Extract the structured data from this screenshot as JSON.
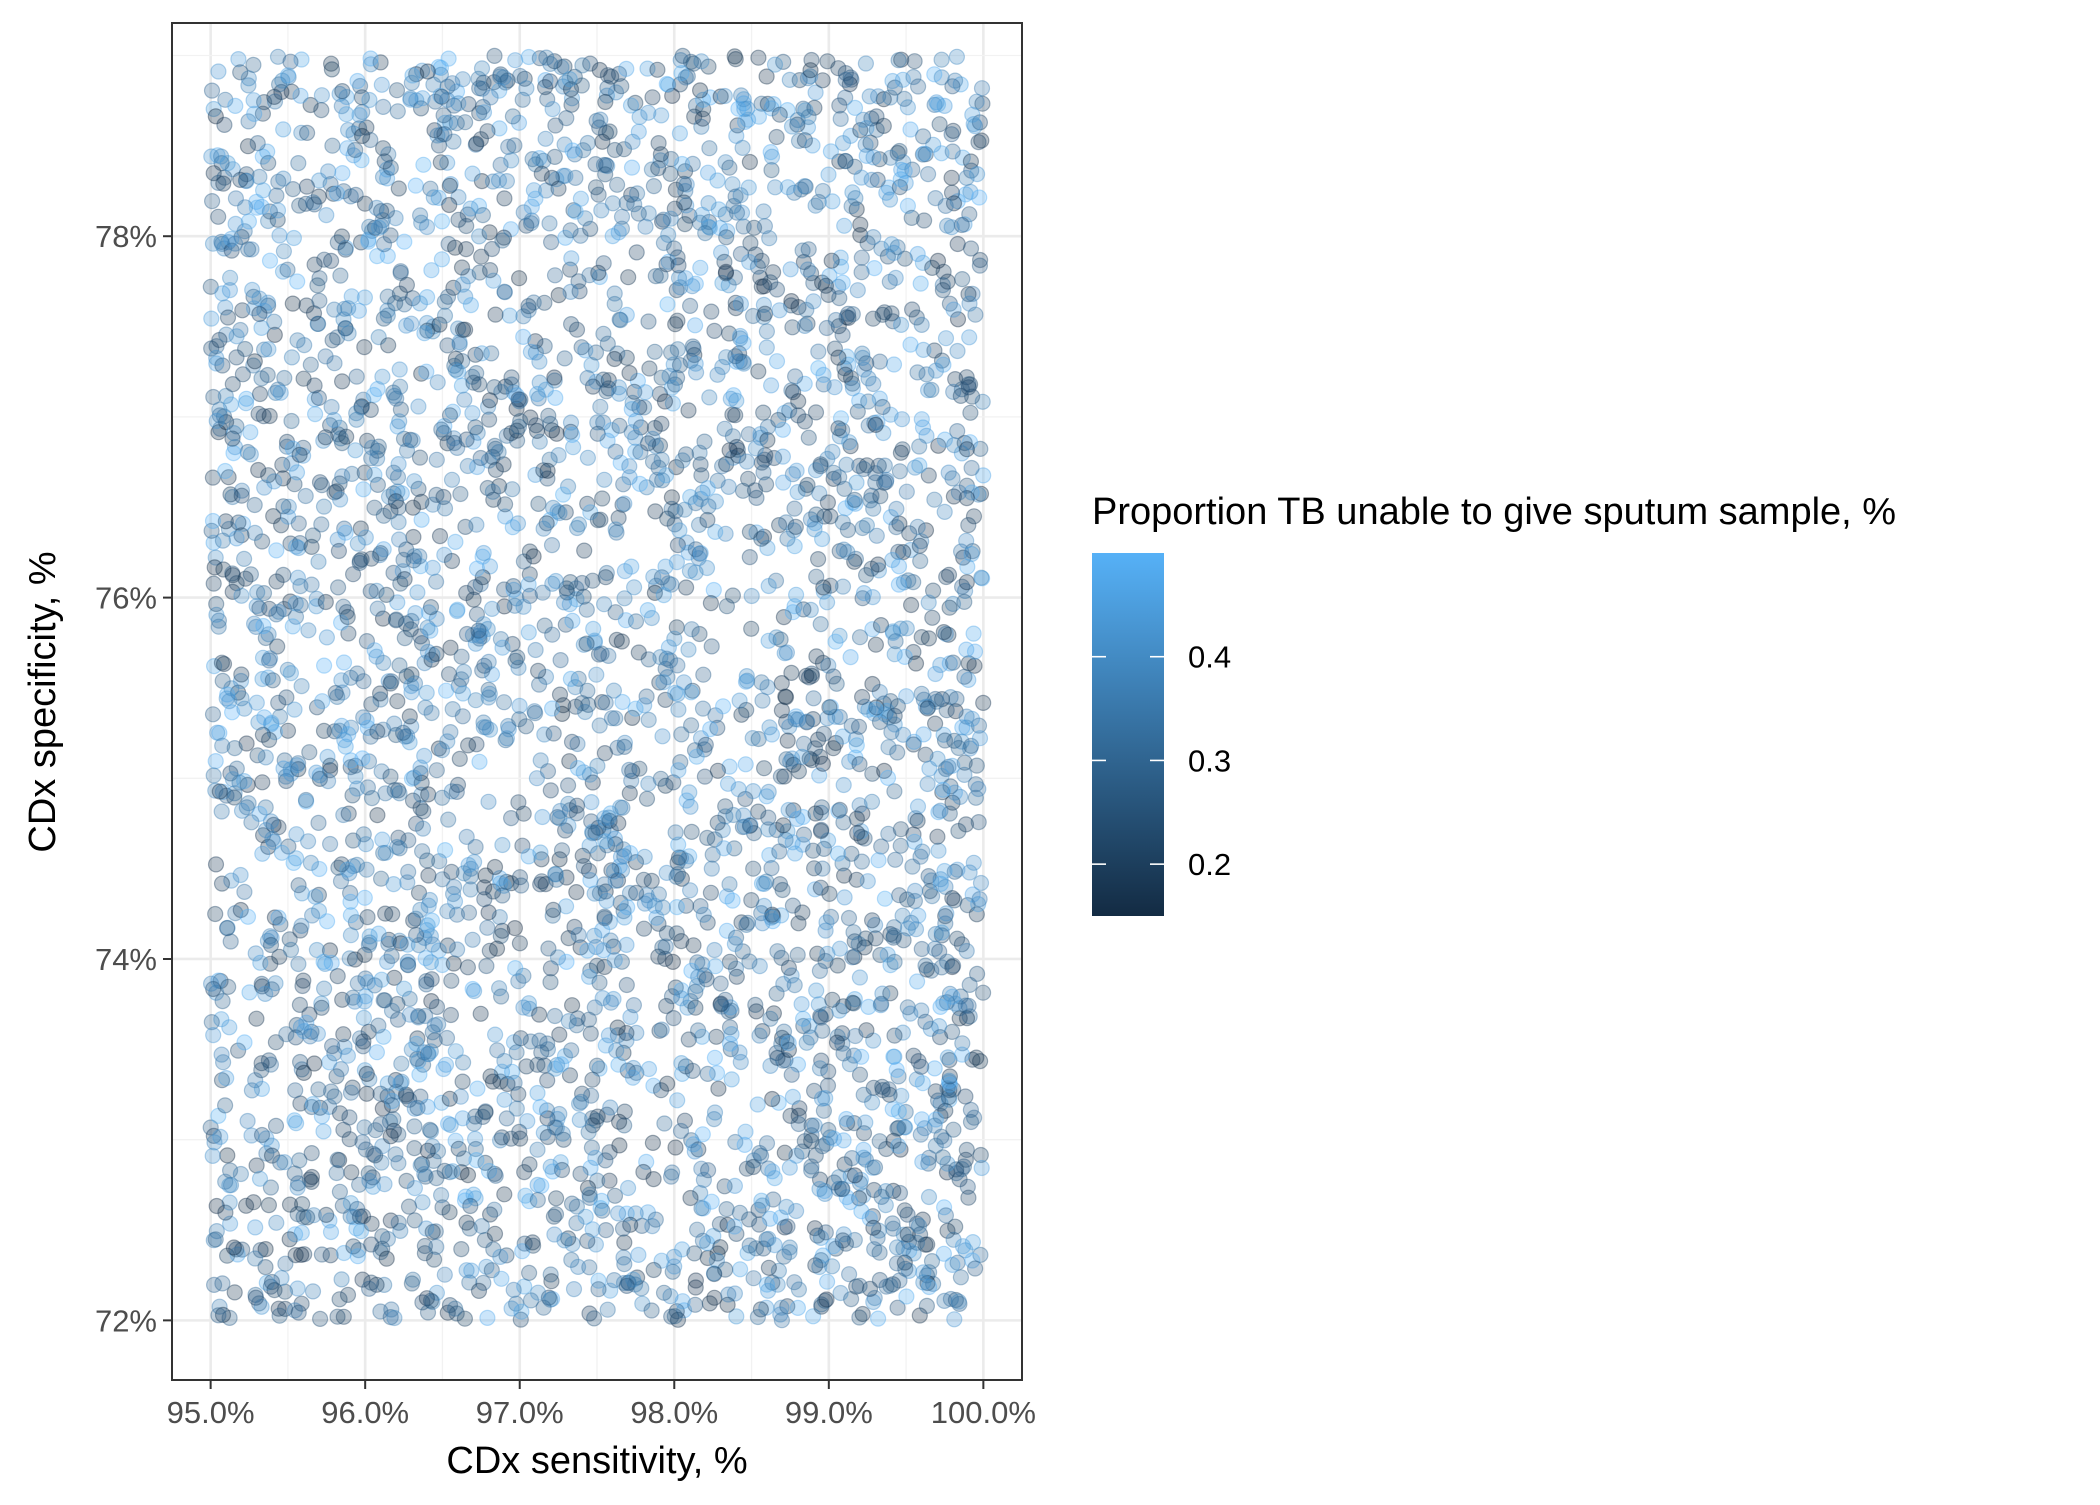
{
  "chart_data": {
    "type": "scatter",
    "title": "",
    "xlabel": "CDx sensitivity, %",
    "ylabel": "CDx specificity, %",
    "xlim": [
      0.9475,
      1.0025
    ],
    "ylim": [
      0.7167,
      0.7918
    ],
    "x_ticks": [
      {
        "value": 0.95,
        "label": "95.0%"
      },
      {
        "value": 0.96,
        "label": "96.0%"
      },
      {
        "value": 0.97,
        "label": "97.0%"
      },
      {
        "value": 0.98,
        "label": "98.0%"
      },
      {
        "value": 0.99,
        "label": "99.0%"
      },
      {
        "value": 1.0,
        "label": "100.0%"
      }
    ],
    "y_ticks": [
      {
        "value": 0.72,
        "label": "72%"
      },
      {
        "value": 0.74,
        "label": "74%"
      },
      {
        "value": 0.76,
        "label": "76%"
      },
      {
        "value": 0.78,
        "label": "78%"
      }
    ],
    "grid": true,
    "legend": {
      "title": "Proportion TB unable to give sputum sample, %",
      "placement": "right",
      "type": "continuous",
      "range": [
        0.15,
        0.5
      ],
      "ticks": [
        {
          "value": 0.2,
          "label": "0.2"
        },
        {
          "value": 0.3,
          "label": "0.3"
        },
        {
          "value": 0.4,
          "label": "0.4"
        }
      ],
      "color_low": "#132b43",
      "color_high": "#56b1f7"
    },
    "point_alpha": 0.3,
    "points_sample": {
      "n": 4000,
      "x_range": [
        0.95,
        1.0
      ],
      "y_range": [
        0.72,
        0.79
      ],
      "color_range": [
        0.15,
        0.5
      ],
      "distribution": "uniform"
    }
  }
}
